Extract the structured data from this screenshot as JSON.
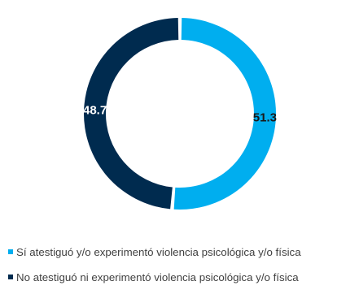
{
  "chart_data": {
    "type": "pie",
    "variant": "donut",
    "title": "",
    "slices": [
      {
        "label": "Sí atestiguó y/o experimentó violencia psicológica y/o física",
        "value": 51.3,
        "value_label": "51.3",
        "color": "#00aeef",
        "label_color": "#1a1a1a"
      },
      {
        "label": "No atestiguó ni experimentó violencia psicológica y/o física",
        "value": 48.7,
        "value_label": "48.7",
        "color": "#002b4f",
        "label_color": "#ffffff"
      }
    ],
    "legend_position": "bottom-left"
  }
}
